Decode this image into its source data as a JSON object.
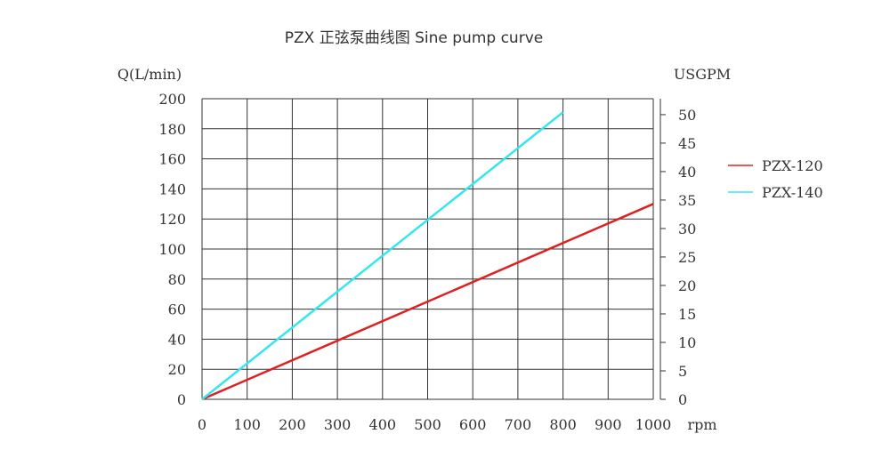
{
  "chart_data": {
    "type": "line",
    "title": "PZX 正弦泵曲线图  Sine pump curve",
    "ylabel": "Q(L/min)",
    "y2label": "USGPM",
    "xunit": "rpm",
    "xlim": [
      0,
      1000
    ],
    "ylim": [
      0,
      200
    ],
    "y2lim": [
      0,
      52.8
    ],
    "x_ticks": [
      "0",
      "100",
      "200",
      "300",
      "400",
      "500",
      "600",
      "700",
      "800",
      "900",
      "1000"
    ],
    "y_ticks": [
      "0",
      "20",
      "40",
      "60",
      "80",
      "100",
      "120",
      "140",
      "160",
      "180",
      "200"
    ],
    "y2_ticks": [
      "0",
      "5",
      "10",
      "15",
      "20",
      "25",
      "30",
      "35",
      "40",
      "45",
      "50"
    ],
    "grid": true,
    "legend_position": "right",
    "series": [
      {
        "name": "PZX-120",
        "color": "#e02020",
        "x": [
          0,
          1000
        ],
        "y": [
          0,
          130
        ]
      },
      {
        "name": "PZX-140",
        "color": "#33e6f0",
        "x": [
          0,
          800
        ],
        "y": [
          0,
          191
        ]
      }
    ]
  }
}
